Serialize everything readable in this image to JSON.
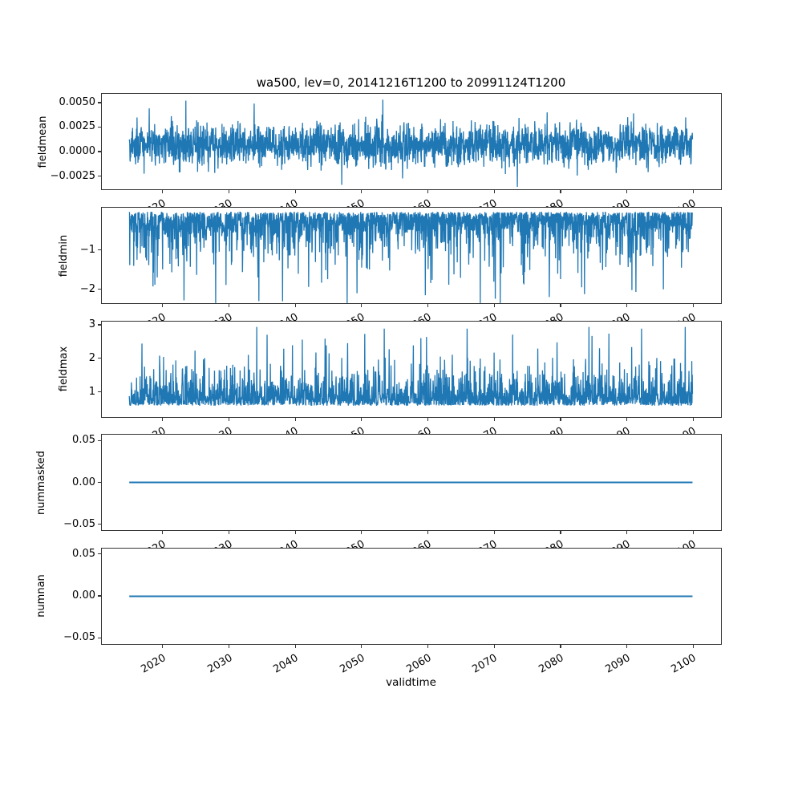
{
  "figure": {
    "title": "wa500, lev=0, 20141216T1200 to 20991124T1200",
    "background_color": "#ffffff",
    "line_color": "#1f77b4",
    "axis_color": "#333333",
    "text_color": "#000000"
  },
  "x_axis": {
    "label": "validtime",
    "tick_values": [
      2020,
      2030,
      2040,
      2050,
      2060,
      2070,
      2080,
      2090,
      2100
    ],
    "tick_labels": [
      "2020",
      "2030",
      "2040",
      "2050",
      "2060",
      "2070",
      "2080",
      "2090",
      "2100"
    ],
    "tick_rotation_deg": 30,
    "xlim": [
      2010.7,
      2104.2
    ],
    "data_start": 2014.958,
    "data_end": 2099.9
  },
  "chart_data": [
    {
      "type": "line",
      "name": "fieldmean",
      "ylabel": "fieldmean",
      "ylim": [
        -0.00393,
        0.00598
      ],
      "ytick_values": [
        0.005,
        0.0025,
        0.0,
        -0.0025
      ],
      "ytick_labels": [
        "0.0050",
        "0.0025",
        "0.0000",
        "−0.0025"
      ],
      "summary": {
        "approx_mean": 0.0007,
        "approx_min": -0.0036,
        "approx_max": 0.0053,
        "character": "dense gaussian-like noise band"
      },
      "gen": {
        "kind": "gauss",
        "n": 2400,
        "seed": 42,
        "base": 0.00068,
        "sigma": 0.00105,
        "clamp": [
          -0.0036,
          0.0053
        ],
        "lw": 1.3,
        "spikes": [
          [
            2023.5,
            0.0052
          ],
          [
            2033.8,
            0.0049
          ],
          [
            2053.2,
            0.0053
          ],
          [
            2047.0,
            -0.0034
          ],
          [
            2073.5,
            -0.0036
          ]
        ]
      }
    },
    {
      "type": "line",
      "name": "fieldmin",
      "ylabel": "fieldmin",
      "ylim": [
        -2.373,
        0.096
      ],
      "ytick_values": [
        -1,
        -2
      ],
      "ytick_labels": [
        "−1",
        "−2"
      ],
      "summary": {
        "approx_max": -0.03,
        "approx_min": -2.35,
        "character": "solid band hugging top (~-0.05) with downward spikes to ~-2.3"
      },
      "gen": {
        "kind": "neg-exp",
        "n": 2400,
        "seed": 7,
        "offset": 0.03,
        "scale": 0.36,
        "clamp": [
          -2.35,
          -0.02
        ],
        "lw": 1.3,
        "spikes": [
          [
            2023.2,
            -2.28
          ],
          [
            2034.5,
            -2.3
          ],
          [
            2049.3,
            -2.1
          ],
          [
            2059.6,
            -2.15
          ],
          [
            2070.9,
            -2.35
          ],
          [
            2083.2,
            -1.95
          ],
          [
            2095.5,
            -2.0
          ]
        ]
      }
    },
    {
      "type": "line",
      "name": "fieldmax",
      "ylabel": "fieldmax",
      "ylim": [
        0.237,
        3.132
      ],
      "ytick_values": [
        3,
        2,
        1
      ],
      "ytick_labels": [
        "3",
        "2",
        "1"
      ],
      "summary": {
        "approx_min": 0.55,
        "approx_max": 2.95,
        "character": "solid band ~0.6-1.6 with upward spikes to ~3"
      },
      "gen": {
        "kind": "pos-exp",
        "n": 2400,
        "seed": 13,
        "offset": 0.6,
        "scale": 0.34,
        "clamp": [
          0.55,
          2.95
        ],
        "lw": 1.3,
        "spikes": [
          [
            2034.2,
            2.95
          ],
          [
            2044.5,
            2.6
          ],
          [
            2053.4,
            2.9
          ],
          [
            2059.8,
            2.65
          ],
          [
            2065.9,
            2.9
          ],
          [
            2087.3,
            2.75
          ],
          [
            2092.2,
            2.9
          ],
          [
            2098.8,
            2.95
          ]
        ]
      }
    },
    {
      "type": "line",
      "name": "nummasked",
      "ylabel": "nummasked",
      "ylim": [
        -0.0578,
        0.0578
      ],
      "ytick_values": [
        0.05,
        0.0,
        -0.05
      ],
      "ytick_labels": [
        "0.05",
        "0.00",
        "−0.05"
      ],
      "summary": {
        "constant_value": 0.0,
        "character": "flat line at 0"
      },
      "gen": {
        "kind": "const",
        "value": 0.0,
        "lw": 1.9
      }
    },
    {
      "type": "line",
      "name": "numnan",
      "ylabel": "numnan",
      "ylim": [
        -0.0578,
        0.0578
      ],
      "ytick_values": [
        0.05,
        0.0,
        -0.05
      ],
      "ytick_labels": [
        "0.05",
        "0.00",
        "−0.05"
      ],
      "summary": {
        "constant_value": 0.0,
        "character": "flat line at 0"
      },
      "gen": {
        "kind": "const",
        "value": 0.0,
        "lw": 1.9
      }
    }
  ]
}
